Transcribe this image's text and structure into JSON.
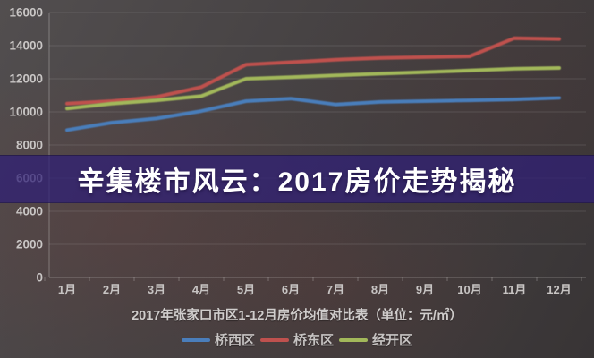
{
  "banner": {
    "title": "辛集楼市风云：2017房价走势揭秘",
    "background": "#352868"
  },
  "chart_data": {
    "type": "line",
    "title": "2017年张家口市区1-12月房价均值对比表（单位：元/㎡）",
    "categories": [
      "1月",
      "2月",
      "3月",
      "4月",
      "5月",
      "6月",
      "7月",
      "8月",
      "9月",
      "10月",
      "11月",
      "12月"
    ],
    "series": [
      {
        "name": "桥西区",
        "color": "#4a7ebb",
        "values": [
          8900,
          9350,
          9600,
          10050,
          10650,
          10800,
          10450,
          10600,
          10650,
          10700,
          10750,
          10850
        ]
      },
      {
        "name": "桥东区",
        "color": "#bf514e",
        "values": [
          10500,
          10650,
          10900,
          11500,
          12850,
          13000,
          13150,
          13250,
          13300,
          13350,
          14450,
          14400
        ]
      },
      {
        "name": "经开区",
        "color": "#a2b85a",
        "values": [
          10200,
          10500,
          10700,
          10950,
          12000,
          12100,
          12200,
          12300,
          12400,
          12500,
          12600,
          12650
        ]
      }
    ],
    "ylim": [
      0,
      16000
    ],
    "y_ticks": [
      16000,
      14000,
      12000,
      10000,
      8000,
      6000,
      4000,
      2000,
      0
    ],
    "grid": true,
    "legend_position": "bottom"
  }
}
